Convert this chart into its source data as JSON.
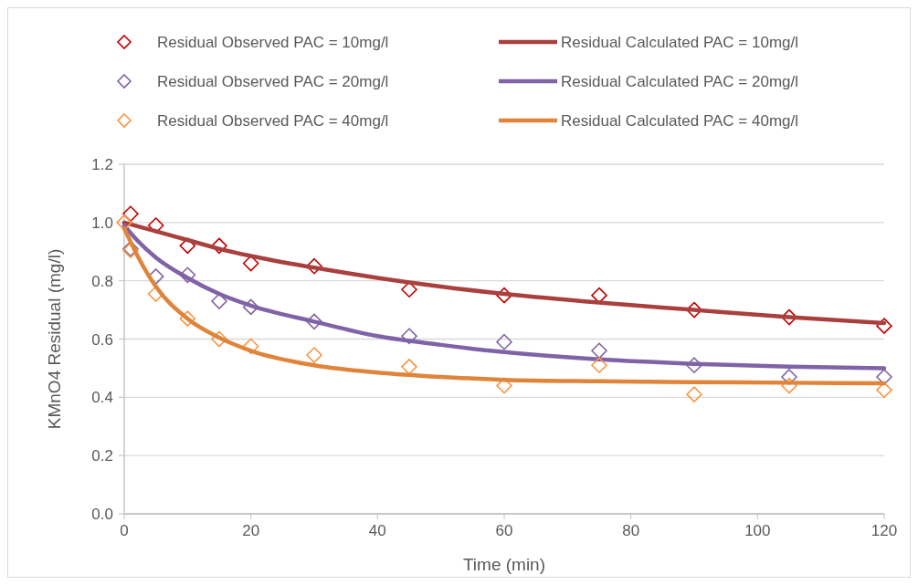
{
  "chart_data": {
    "type": "scatter",
    "xlabel": "Time (min)",
    "ylabel": "KMnO4 Residual (mg/l)",
    "xlim": [
      0,
      120
    ],
    "xticks": [
      0,
      20,
      40,
      60,
      80,
      100,
      120
    ],
    "ylim": [
      0,
      1.2
    ],
    "yticks": [
      {
        "value": 0,
        "label": "0.0"
      },
      {
        "value": 0.2,
        "label": "0.2"
      },
      {
        "value": 0.4,
        "label": "0.4"
      },
      {
        "value": 0.6,
        "label": "0.6"
      },
      {
        "value": 0.8,
        "label": "0.8"
      },
      {
        "value": 1,
        "label": "1.0"
      },
      {
        "value": 1.2,
        "label": "1.2"
      }
    ],
    "grid": "y",
    "legend": "top",
    "series": [
      {
        "name": "Residual Observed PAC = 10mg/l",
        "marker": "diamond",
        "color": "#c00000",
        "x": [
          1,
          5,
          10,
          15,
          20,
          30,
          45,
          60,
          75,
          90,
          105,
          120
        ],
        "values": [
          1.03,
          0.99,
          0.92,
          0.92,
          0.86,
          0.85,
          0.77,
          0.75,
          0.75,
          0.7,
          0.675,
          0.645
        ]
      },
      {
        "name": "Residual Calculated PAC = 10mg/l",
        "type": "line",
        "color": "#a9403e",
        "x": [
          0,
          5,
          10,
          15,
          20,
          30,
          40,
          50,
          60,
          75,
          90,
          105,
          120
        ],
        "values": [
          1.0,
          0.97,
          0.94,
          0.91,
          0.885,
          0.845,
          0.81,
          0.78,
          0.755,
          0.725,
          0.7,
          0.675,
          0.655
        ]
      },
      {
        "name": "Residual Observed PAC = 20mg/l",
        "marker": "diamond",
        "color": "#8064a2",
        "x": [
          1,
          5,
          10,
          15,
          20,
          30,
          45,
          60,
          75,
          90,
          105,
          120
        ],
        "values": [
          0.91,
          0.815,
          0.82,
          0.73,
          0.71,
          0.66,
          0.61,
          0.59,
          0.56,
          0.51,
          0.47,
          0.47
        ]
      },
      {
        "name": "Residual Calculated PAC = 20mg/l",
        "type": "line",
        "color": "#7f63a6",
        "x": [
          0,
          2,
          5,
          10,
          15,
          20,
          30,
          40,
          50,
          60,
          75,
          90,
          105,
          120
        ],
        "values": [
          0.99,
          0.94,
          0.88,
          0.81,
          0.755,
          0.715,
          0.66,
          0.61,
          0.58,
          0.555,
          0.53,
          0.515,
          0.505,
          0.5
        ]
      },
      {
        "name": "Residual Observed PAC = 40mg/l",
        "marker": "diamond",
        "color": "#f79646",
        "x": [
          0,
          1,
          5,
          10,
          15,
          20,
          30,
          45,
          60,
          75,
          90,
          105,
          120
        ],
        "values": [
          1.0,
          0.905,
          0.755,
          0.67,
          0.6,
          0.575,
          0.545,
          0.505,
          0.44,
          0.51,
          0.41,
          0.44,
          0.425
        ]
      },
      {
        "name": "Residual Calculated PAC = 40mg/l",
        "type": "line",
        "color": "#e0843a",
        "x": [
          0,
          2,
          5,
          10,
          15,
          20,
          30,
          40,
          50,
          60,
          75,
          90,
          105,
          120
        ],
        "values": [
          0.98,
          0.89,
          0.78,
          0.67,
          0.605,
          0.56,
          0.51,
          0.485,
          0.47,
          0.46,
          0.455,
          0.452,
          0.45,
          0.448
        ]
      }
    ]
  }
}
